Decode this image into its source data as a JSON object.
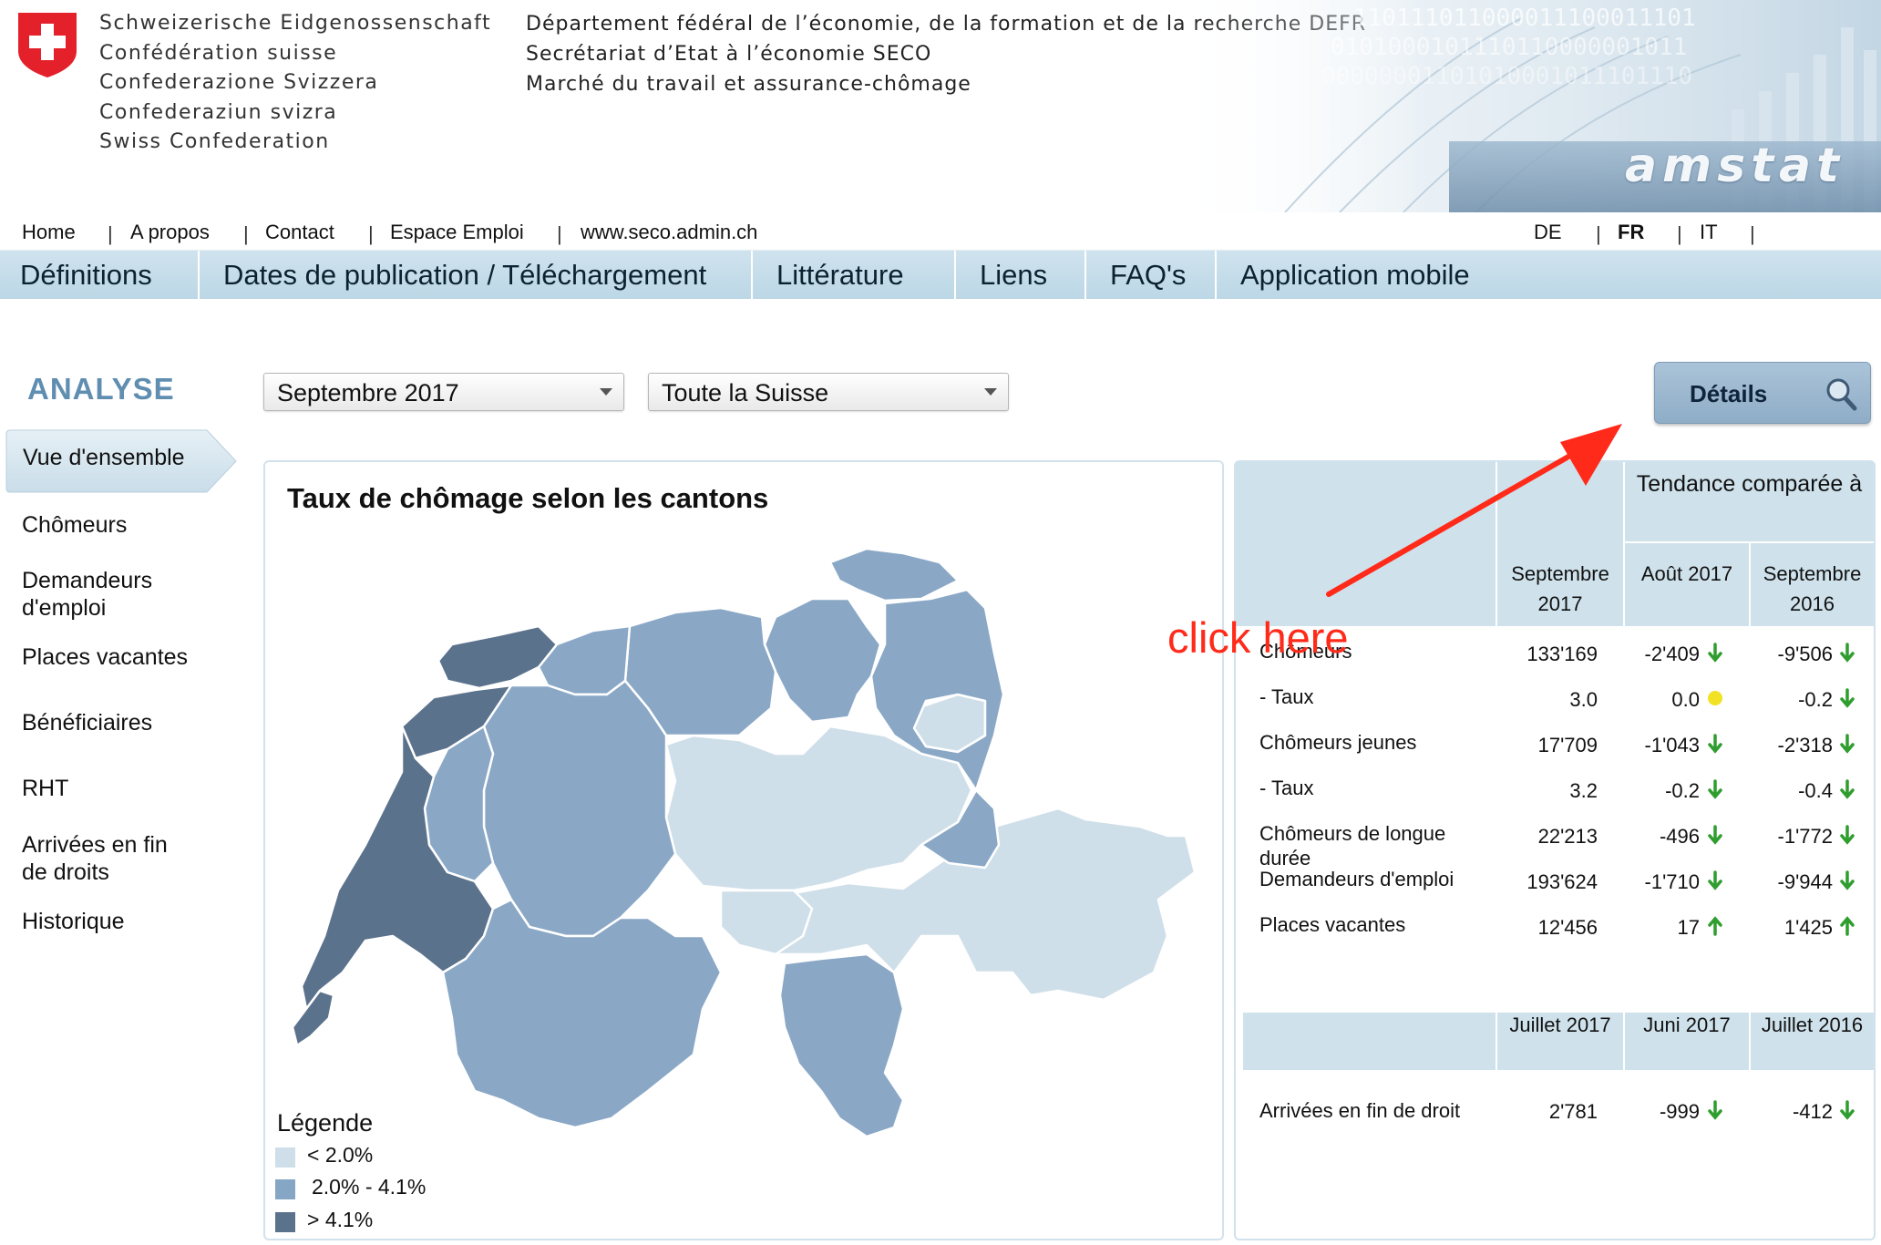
{
  "header": {
    "confederation_lines": [
      "Schweizerische Eidgenossenschaft",
      "Confédération suisse",
      "Confederazione Svizzera",
      "Confederaziun svizra",
      "Swiss Confederation"
    ],
    "department_lines": [
      "Département fédéral de l’économie, de la formation et de la recherche DEFR",
      "Secrétariat d’Etat à l’économie SECO",
      "Marché du travail et assurance-chômage"
    ],
    "brand": "amstat",
    "binary_lines": [
      "110111011000011100011101",
      "0101000101110110000001011",
      "00000001101010001011101110"
    ]
  },
  "top_links": [
    "Home",
    "A propos",
    "Contact",
    "Espace Emploi",
    "www.seco.admin.ch"
  ],
  "languages": [
    {
      "code": "DE",
      "active": false
    },
    {
      "code": "FR",
      "active": true
    },
    {
      "code": "IT",
      "active": false
    }
  ],
  "main_nav": [
    "Définitions",
    "Dates de publication / Téléchargement",
    "Littérature",
    "Liens",
    "FAQ's",
    "Application mobile"
  ],
  "sidebar": {
    "section_title": "ANALYSE",
    "active_item": "Vue d'ensemble",
    "items": [
      "Chômeurs",
      "Demandeurs d'emploi",
      "Places vacantes",
      "Bénéficiaires",
      "RHT",
      "Arrivées en fin de droits",
      "Historique"
    ]
  },
  "filters": {
    "period": "Septembre 2017",
    "region": "Toute la Suisse"
  },
  "details_button": "Détails",
  "map": {
    "title": "Taux de chômage selon les cantons",
    "legend_title": "Légende",
    "legend": [
      {
        "label": "< 2.0%",
        "color": "#cfdfe9"
      },
      {
        "label": "2.0% -  4.1%",
        "color": "#86a6c5"
      },
      {
        "label": "> 4.1%",
        "color": "#5b728c"
      }
    ]
  },
  "stats_table": {
    "group_header": "Tendance comparée à",
    "columns": [
      "Septembre 2017",
      "Août 2017",
      "Septembre 2016"
    ],
    "rows": [
      {
        "label": "Chômeurs",
        "value": "133'169",
        "c1": "-2'409",
        "t1": "down",
        "c2": "-9'506",
        "t2": "down"
      },
      {
        "label": "- Taux",
        "value": "3.0",
        "c1": "0.0",
        "t1": "neutral",
        "c2": "-0.2",
        "t2": "down"
      },
      {
        "label": "Chômeurs jeunes",
        "value": "17'709",
        "c1": "-1'043",
        "t1": "down",
        "c2": "-2'318",
        "t2": "down"
      },
      {
        "label": "- Taux",
        "value": "3.2",
        "c1": "-0.2",
        "t1": "down",
        "c2": "-0.4",
        "t2": "down"
      },
      {
        "label": "Chômeurs de longue durée",
        "value": "22'213",
        "c1": "-496",
        "t1": "down",
        "c2": "-1'772",
        "t2": "down"
      },
      {
        "label": "Demandeurs d'emploi",
        "value": "193'624",
        "c1": "-1'710",
        "t1": "down",
        "c2": "-9'944",
        "t2": "down"
      },
      {
        "label": "Places vacantes",
        "value": "12'456",
        "c1": "17",
        "t1": "up",
        "c2": "1'425",
        "t2": "up"
      }
    ]
  },
  "arrivals_table": {
    "columns": [
      "Juillet 2017",
      "Juni 2017",
      "Juillet 2016"
    ],
    "row": {
      "label": "Arrivées en fin de droit",
      "value": "2'781",
      "c1": "-999",
      "t1": "down",
      "c2": "-412",
      "t2": "down"
    }
  },
  "annotation": "click here",
  "colors": {
    "accent": "#5f8eb1",
    "nav_bg": "#c4dce9",
    "trend_down": "#2f9e2f",
    "trend_up": "#2f9e2f",
    "trend_neutral": "#f2e224",
    "annotation": "#ff2a1a"
  }
}
